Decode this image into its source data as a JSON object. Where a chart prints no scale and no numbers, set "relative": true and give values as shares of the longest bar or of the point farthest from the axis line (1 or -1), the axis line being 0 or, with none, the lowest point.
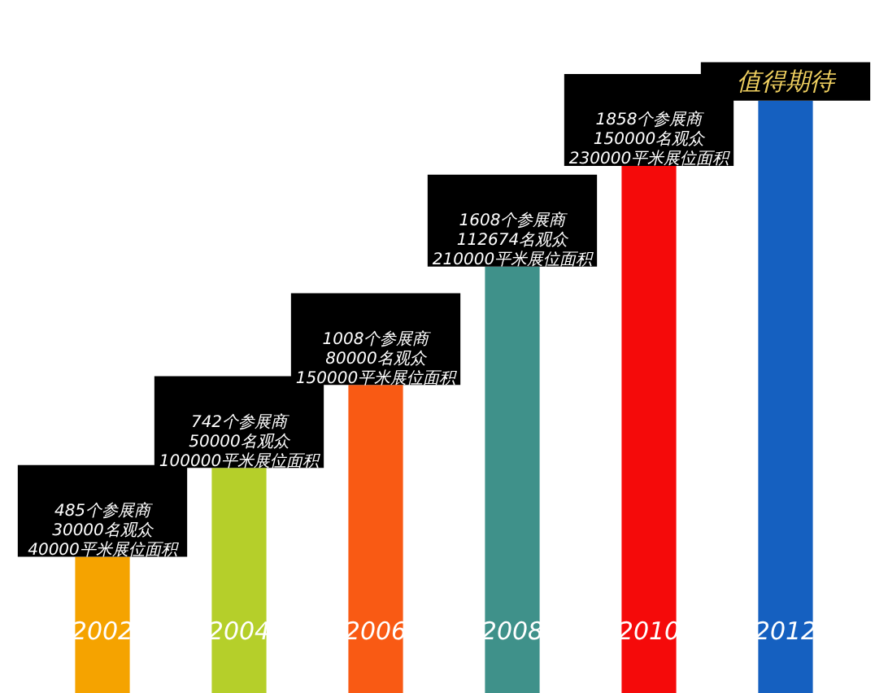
{
  "chart_data": {
    "type": "bar",
    "relative": true,
    "categories": [
      "2002",
      "2004",
      "2006",
      "2008",
      "2010",
      "2012"
    ],
    "values": [
      0.23,
      0.38,
      0.52,
      0.72,
      0.89,
      1
    ],
    "colors": [
      "#f5a300",
      "#b5cf2a",
      "#f95a14",
      "#3f918a",
      "#f50a0a",
      "#1560c0"
    ],
    "annotations": [
      {
        "text": "485个参展商\n30000名观众\n40000平米展位面积",
        "x": "2002",
        "y": 0.23
      },
      {
        "text": "742个参展商\n50000名观众\n100000平米展位面积",
        "x": "2004",
        "y": 0.38
      },
      {
        "text": "1008个参展商\n80000名观众\n150000平米展位面积",
        "x": "2006",
        "y": 0.52
      },
      {
        "text": "1608个参展商\n112674名观众\n210000平米展位面积",
        "x": "2008",
        "y": 0.72
      },
      {
        "text": "1858个参展商\n150000名观众\n230000平米展位面积",
        "x": "2010",
        "y": 0.89
      },
      {
        "text": "值得期待",
        "x": "2012",
        "y": 1
      }
    ]
  }
}
